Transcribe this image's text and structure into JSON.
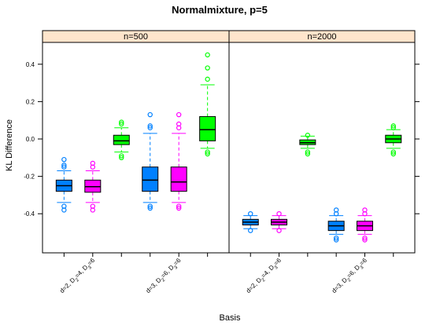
{
  "chart_data": {
    "type": "boxplot",
    "title": "Normalmixture, p=5",
    "xlabel": "Basis",
    "ylabel": "KL Difference",
    "ylim": [
      -0.6,
      0.5
    ],
    "yticks": [
      -0.4,
      -0.2,
      0.0,
      0.2,
      0.4
    ],
    "ytick_labels": [
      "-0.4",
      "-0.2",
      "0.0",
      "0.2",
      "0.4"
    ],
    "category_labels": [
      {
        "prefix": "d=2, D",
        "s1": "2",
        "v1": "=4, D",
        "s2": "3",
        "v2": "=6"
      },
      {
        "prefix": "d=3, D",
        "s1": "2",
        "v1": "=6, D",
        "s2": "3",
        "v2": "=6"
      }
    ],
    "colors": [
      "#0080ff",
      "#ff00ff",
      "#00ff00"
    ],
    "panels": [
      {
        "strip": "n=500",
        "boxes": [
          {
            "pos": 1,
            "color": 0,
            "q1": -0.28,
            "med": -0.25,
            "q3": -0.22,
            "lo": -0.34,
            "hi": -0.17,
            "out": [
              -0.11,
              -0.14,
              -0.15,
              -0.36,
              -0.38
            ]
          },
          {
            "pos": 2,
            "color": 1,
            "q1": -0.285,
            "med": -0.255,
            "q3": -0.22,
            "lo": -0.34,
            "hi": -0.17,
            "out": [
              -0.13,
              -0.15,
              -0.36,
              -0.38
            ]
          },
          {
            "pos": 3,
            "color": 2,
            "q1": -0.03,
            "med": -0.01,
            "q3": 0.02,
            "lo": -0.07,
            "hi": 0.06,
            "out": [
              0.09,
              0.08,
              -0.09,
              -0.1
            ]
          },
          {
            "pos": 4,
            "color": 0,
            "q1": -0.28,
            "med": -0.22,
            "q3": -0.15,
            "lo": -0.34,
            "hi": 0.03,
            "out": [
              0.13,
              0.07,
              0.06,
              -0.36,
              -0.37
            ]
          },
          {
            "pos": 5,
            "color": 1,
            "q1": -0.28,
            "med": -0.23,
            "q3": -0.15,
            "lo": -0.34,
            "hi": 0.03,
            "out": [
              0.13,
              0.08,
              0.06,
              -0.36,
              -0.37
            ]
          },
          {
            "pos": 6,
            "color": 2,
            "q1": -0.01,
            "med": 0.05,
            "q3": 0.12,
            "lo": -0.05,
            "hi": 0.29,
            "out": [
              0.45,
              0.38,
              0.32,
              -0.07,
              -0.08
            ]
          }
        ]
      },
      {
        "strip": "n=2000",
        "boxes": [
          {
            "pos": 1,
            "color": 0,
            "q1": -0.46,
            "med": -0.445,
            "q3": -0.43,
            "lo": -0.48,
            "hi": -0.41,
            "out": [
              -0.4,
              -0.49
            ]
          },
          {
            "pos": 2,
            "color": 1,
            "q1": -0.46,
            "med": -0.445,
            "q3": -0.43,
            "lo": -0.48,
            "hi": -0.41,
            "out": [
              -0.4,
              -0.49
            ]
          },
          {
            "pos": 3,
            "color": 2,
            "q1": -0.03,
            "med": -0.02,
            "q3": -0.005,
            "lo": -0.05,
            "hi": 0.015,
            "out": [
              0.02,
              -0.07,
              -0.08
            ]
          },
          {
            "pos": 4,
            "color": 0,
            "q1": -0.49,
            "med": -0.465,
            "q3": -0.44,
            "lo": -0.51,
            "hi": -0.41,
            "out": [
              -0.38,
              -0.4,
              -0.53,
              -0.54
            ]
          },
          {
            "pos": 5,
            "color": 1,
            "q1": -0.49,
            "med": -0.465,
            "q3": -0.44,
            "lo": -0.51,
            "hi": -0.41,
            "out": [
              -0.38,
              -0.4,
              -0.53,
              -0.54
            ]
          },
          {
            "pos": 6,
            "color": 2,
            "q1": -0.02,
            "med": 0.0,
            "q3": 0.02,
            "lo": -0.05,
            "hi": 0.05,
            "out": [
              0.07,
              0.06,
              -0.07,
              -0.08
            ]
          }
        ]
      }
    ]
  }
}
